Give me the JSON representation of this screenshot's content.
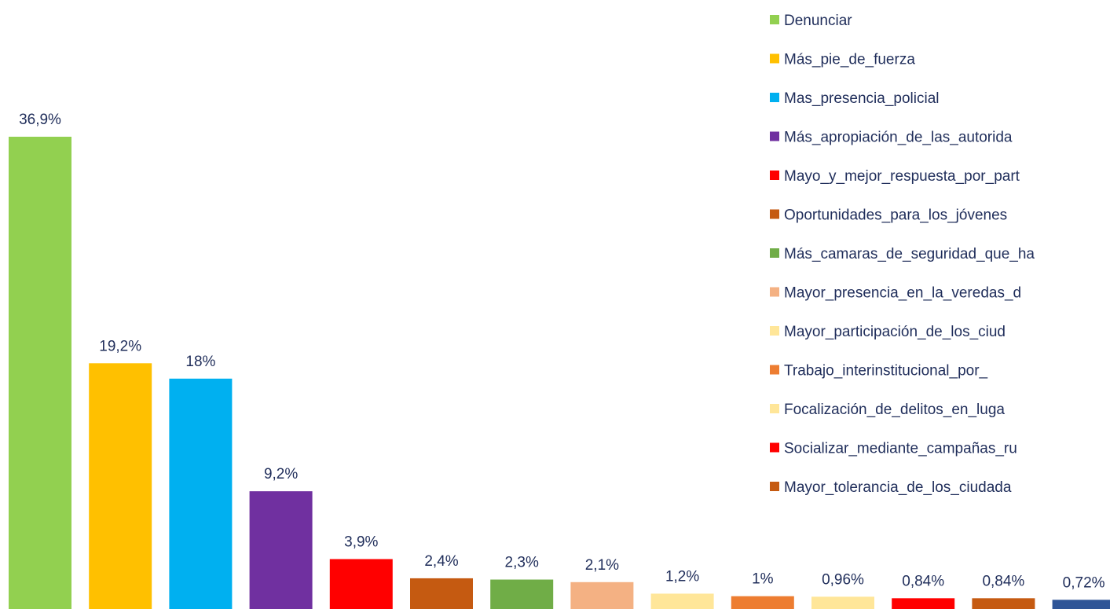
{
  "chart_data": {
    "type": "bar",
    "categories": [
      "Denunciar",
      "Más_pie_de_fuerza",
      "Mas_presencia_policial",
      "Más_apropiación_de_las_autorida",
      "Mayo_y_mejor_respuesta_por_part",
      "Oportunidades_para_los_jóvenes",
      "Más_camaras_de_seguridad_que_ha",
      "Mayor_presencia_en_la_veredas_d",
      "Mayor_participación_de_los_ciud",
      "Trabajo_interinstitucional_por_",
      "Focalización_de_delitos_en_luga",
      "Socializar_mediante_campañas_ru",
      "Mayor_tolerancia_de_los_ciudada",
      null
    ],
    "values": [
      36.9,
      19.2,
      18,
      9.2,
      3.9,
      2.4,
      2.3,
      2.1,
      1.2,
      1,
      0.96,
      0.84,
      0.84,
      0.72
    ],
    "value_labels": [
      "36,9%",
      "19,2%",
      "18%",
      "9,2%",
      "3,9%",
      "2,4%",
      "2,3%",
      "2,1%",
      "1,2%",
      "1%",
      "0,96%",
      "0,84%",
      "0,84%",
      "0,72%"
    ],
    "colors": [
      "#92d050",
      "#ffc000",
      "#00b0f0",
      "#7030a0",
      "#ff0000",
      "#c55a11",
      "#70ad47",
      "#f4b183",
      "#ffe699",
      "#ed7d31",
      "#ffe699",
      "#ff0000",
      "#c55a11",
      "#2f5597"
    ],
    "legend": "top-right"
  }
}
